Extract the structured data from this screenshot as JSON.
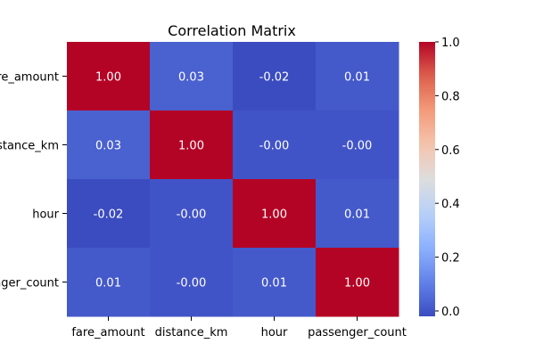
{
  "chart_data": {
    "type": "heatmap",
    "title": "Correlation Matrix",
    "row_labels": [
      "fare_amount",
      "distance_km",
      "hour",
      "passenger_count"
    ],
    "col_labels": [
      "fare_amount",
      "distance_km",
      "hour",
      "passenger_count"
    ],
    "values": [
      [
        1.0,
        0.03,
        -0.02,
        0.01
      ],
      [
        0.03,
        1.0,
        -0.0,
        -0.0
      ],
      [
        -0.02,
        -0.0,
        1.0,
        0.01
      ],
      [
        0.01,
        -0.0,
        0.01,
        1.0
      ]
    ],
    "cell_labels": [
      [
        "1.00",
        "0.03",
        "-0.02",
        "0.01"
      ],
      [
        "0.03",
        "1.00",
        "-0.00",
        "-0.00"
      ],
      [
        "-0.02",
        "-0.00",
        "1.00",
        "0.01"
      ],
      [
        "0.01",
        "-0.00",
        "0.01",
        "1.00"
      ]
    ],
    "colormap": "coolwarm",
    "colorbar": {
      "range": [
        -0.02,
        1.0
      ],
      "ticks": [
        0.0,
        0.2,
        0.4,
        0.6,
        0.8,
        1.0
      ],
      "tick_labels": [
        "0.0",
        "0.2",
        "0.4",
        "0.6",
        "0.8",
        "1.0"
      ]
    },
    "grid": false,
    "legend": "colorbar-right"
  }
}
